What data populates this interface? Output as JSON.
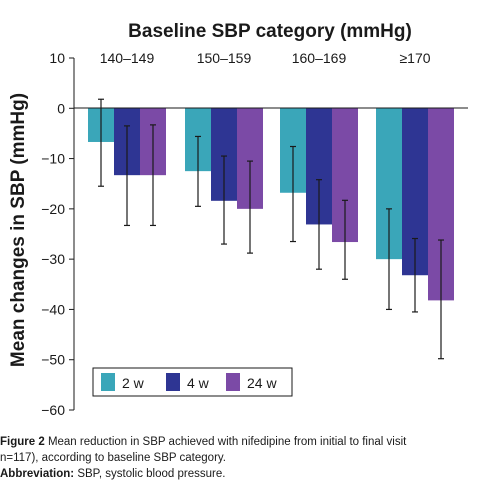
{
  "chart_data": {
    "type": "bar",
    "title": "Baseline SBP category (mmHg)",
    "ylabel": "Mean changes in SBP (mmHg)",
    "xlabel": "",
    "categories": [
      "140–149",
      "150–159",
      "160–169",
      "≥170"
    ],
    "ylim": [
      -60,
      10
    ],
    "yticks": [
      10,
      0,
      -10,
      -20,
      -30,
      -40,
      -50,
      -60
    ],
    "tick_labels": [
      "10",
      "0",
      "−10",
      "−20",
      "−30",
      "−40",
      "−50",
      "−60"
    ],
    "series": [
      {
        "name": "2 w",
        "color": "#3aa6b9",
        "values": [
          -6.7,
          -12.5,
          -16.8,
          -30.0
        ],
        "err_lo": [
          -15.5,
          -19.5,
          -26.5,
          -40.0
        ],
        "err_hi": [
          1.8,
          -5.6,
          -7.6,
          -20.0
        ]
      },
      {
        "name": "4 w",
        "color": "#2e3593",
        "values": [
          -13.3,
          -18.4,
          -23.1,
          -33.2
        ],
        "err_lo": [
          -23.3,
          -27.0,
          -32.0,
          -40.5
        ],
        "err_hi": [
          -3.5,
          -9.5,
          -14.2,
          -25.9
        ]
      },
      {
        "name": "24 w",
        "color": "#7b4aa6",
        "values": [
          -13.3,
          -20.0,
          -26.6,
          -38.2
        ],
        "err_lo": [
          -23.3,
          -28.8,
          -34.0,
          -49.8
        ],
        "err_hi": [
          -3.3,
          -10.5,
          -18.3,
          -26.2
        ]
      }
    ],
    "legend_position": "bottom-left",
    "grid": false,
    "error_bars": true
  },
  "caption": {
    "figure_label": "Figure 2",
    "figure_text": "Mean reduction in SBP achieved with nifedipine from initial to final visit",
    "figure_text_cont": "n=117), according to baseline SBP category.",
    "abbrev_label": "Abbreviation:",
    "abbrev_text": "SBP, systolic blood pressure."
  }
}
